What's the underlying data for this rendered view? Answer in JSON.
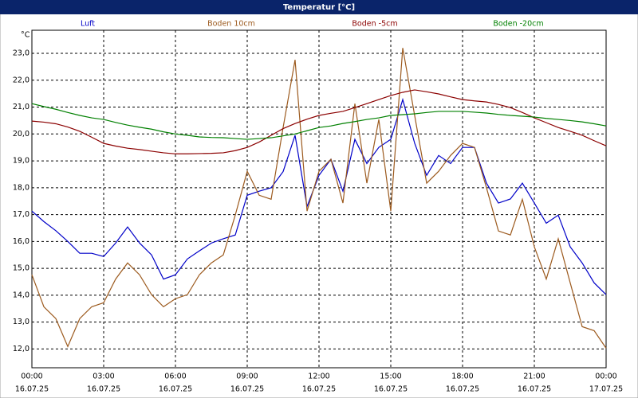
{
  "chart_data": {
    "type": "line",
    "title": "Temperatur [°C]",
    "y_label": "°C",
    "x": [
      0,
      0.5,
      1,
      1.5,
      2,
      2.5,
      3,
      3.5,
      4,
      4.5,
      5,
      5.5,
      6,
      6.5,
      7,
      7.5,
      8,
      8.5,
      9,
      9.5,
      10,
      10.5,
      11,
      11.5,
      12,
      12.5,
      13,
      13.5,
      14,
      14.5,
      15,
      15.5,
      16,
      16.5,
      17,
      17.5,
      18,
      18.5,
      19,
      19.5,
      20,
      20.5,
      21,
      21.5,
      22,
      22.5,
      23,
      23.5,
      24
    ],
    "xlim": [
      0,
      24
    ],
    "xticks": [
      {
        "value": 0,
        "label": "00:00"
      },
      {
        "value": 3,
        "label": "03:00"
      },
      {
        "value": 6,
        "label": "06:00"
      },
      {
        "value": 9,
        "label": "09:00"
      },
      {
        "value": 12,
        "label": "12:00"
      },
      {
        "value": 15,
        "label": "15:00"
      },
      {
        "value": 18,
        "label": "18:00"
      },
      {
        "value": 21,
        "label": "21:00"
      },
      {
        "value": 24,
        "label": "00:00"
      }
    ],
    "xtick_dates": [
      "16.07.25",
      "16.07.25",
      "16.07.25",
      "16.07.25",
      "16.07.25",
      "16.07.25",
      "16.07.25",
      "16.07.25",
      "17.07.25"
    ],
    "ylim": [
      11.3,
      23.86
    ],
    "yticks": [
      {
        "value": 12,
        "label": "12,0"
      },
      {
        "value": 13,
        "label": "13,0"
      },
      {
        "value": 14,
        "label": "14,0"
      },
      {
        "value": 15,
        "label": "15,0"
      },
      {
        "value": 16,
        "label": "16,0"
      },
      {
        "value": 17,
        "label": "17,0"
      },
      {
        "value": 18,
        "label": "18,0"
      },
      {
        "value": 19,
        "label": "19,0"
      },
      {
        "value": 20,
        "label": "20,0"
      },
      {
        "value": 21,
        "label": "21,0"
      },
      {
        "value": 22,
        "label": "22,0"
      },
      {
        "value": 23,
        "label": "23,0"
      }
    ],
    "grid": true,
    "series": [
      {
        "name": "Luft",
        "color": "#0000c8",
        "values": [
          17.13,
          16.74,
          16.4,
          16.0,
          15.56,
          15.56,
          15.44,
          15.94,
          16.54,
          15.94,
          15.5,
          14.6,
          14.76,
          15.35,
          15.65,
          15.94,
          16.1,
          16.24,
          17.72,
          17.87,
          18.0,
          18.6,
          19.95,
          17.3,
          18.46,
          19.06,
          17.87,
          19.8,
          18.9,
          19.5,
          19.8,
          21.28,
          19.65,
          18.46,
          19.2,
          18.9,
          19.5,
          19.5,
          18.17,
          17.43,
          17.58,
          18.17,
          17.43,
          16.68,
          16.98,
          15.8,
          15.2,
          14.46,
          14.02
        ]
      },
      {
        "name": "Boden 10cm",
        "color": "#9c5a1e",
        "values": [
          14.76,
          13.57,
          13.13,
          12.09,
          13.13,
          13.57,
          13.72,
          14.6,
          15.2,
          14.76,
          14.02,
          13.57,
          13.87,
          14.02,
          14.76,
          15.2,
          15.5,
          16.98,
          18.61,
          17.72,
          17.57,
          20.24,
          22.76,
          17.13,
          18.61,
          19.06,
          17.43,
          21.13,
          18.17,
          20.54,
          17.13,
          23.2,
          20.68,
          18.17,
          18.61,
          19.2,
          19.65,
          19.5,
          18.0,
          16.39,
          16.24,
          17.57,
          15.8,
          14.6,
          16.1,
          14.46,
          12.83,
          12.68,
          12.03
        ]
      },
      {
        "name": "Boden -5cm",
        "color": "#8b0000",
        "values": [
          20.48,
          20.44,
          20.38,
          20.26,
          20.1,
          19.88,
          19.65,
          19.55,
          19.47,
          19.42,
          19.36,
          19.3,
          19.26,
          19.26,
          19.27,
          19.28,
          19.3,
          19.38,
          19.5,
          19.7,
          19.95,
          20.2,
          20.39,
          20.55,
          20.69,
          20.77,
          20.84,
          20.98,
          21.13,
          21.28,
          21.43,
          21.55,
          21.64,
          21.57,
          21.49,
          21.38,
          21.28,
          21.23,
          21.19,
          21.1,
          20.98,
          20.8,
          20.6,
          20.42,
          20.24,
          20.1,
          19.95,
          19.75,
          19.56
        ]
      },
      {
        "name": "Boden -20cm",
        "color": "#008000",
        "values": [
          21.13,
          21.02,
          20.92,
          20.8,
          20.69,
          20.6,
          20.54,
          20.43,
          20.33,
          20.25,
          20.18,
          20.08,
          20.0,
          19.95,
          19.89,
          19.87,
          19.86,
          19.83,
          19.8,
          19.83,
          19.86,
          19.93,
          20.0,
          20.12,
          20.24,
          20.3,
          20.39,
          20.46,
          20.54,
          20.6,
          20.69,
          20.72,
          20.75,
          20.8,
          20.84,
          20.84,
          20.84,
          20.81,
          20.78,
          20.73,
          20.69,
          20.66,
          20.63,
          20.58,
          20.54,
          20.5,
          20.45,
          20.38,
          20.3
        ]
      }
    ]
  }
}
